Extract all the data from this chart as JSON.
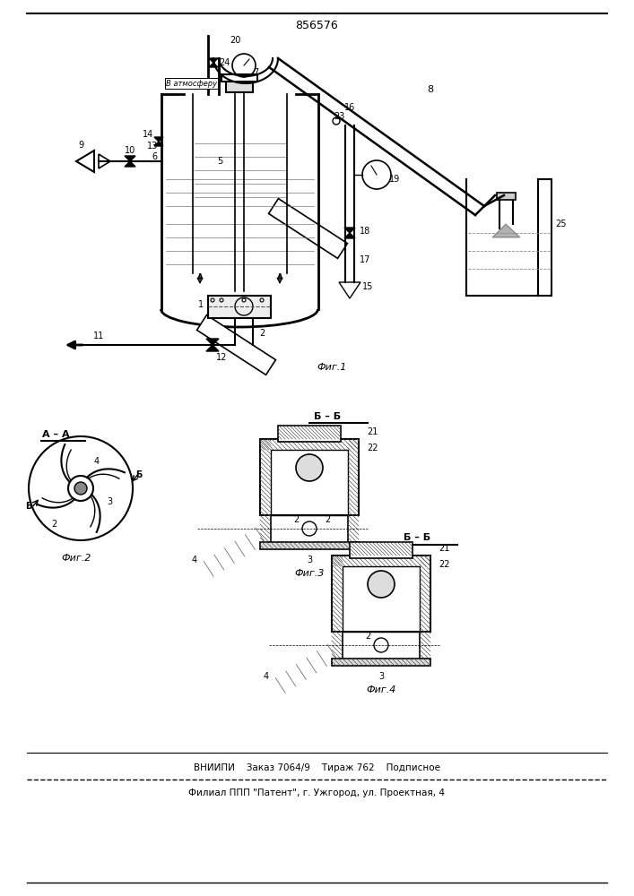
{
  "patent_number": "856576",
  "bg_color": "#ffffff",
  "line_color": "#000000",
  "footer_line1": "ВНИИПИ    Заказ 7064/9    Тираж 762    Подписное",
  "footer_line2": "Филиал ППП \"Патент\", г. Ужгород, ул. Проектная, 4",
  "fig1_label": "Фиг.1",
  "fig2_label": "Фиг.2",
  "fig3_label": "Фиг.3",
  "fig4_label": "Фиг.4",
  "section_aa": "А – А",
  "section_bb": "Б – Б",
  "vatm_label": "В атмосферу"
}
